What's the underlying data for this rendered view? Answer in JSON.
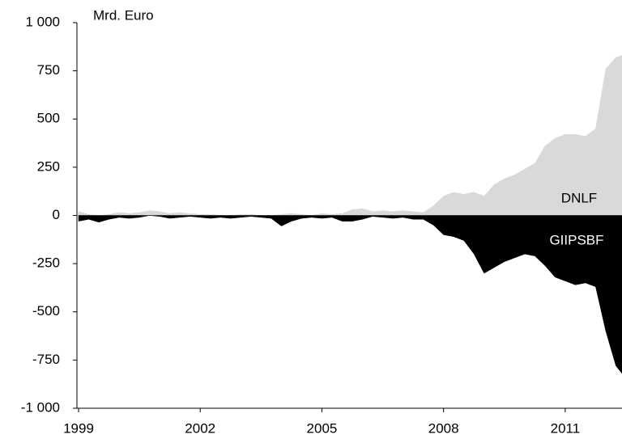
{
  "chart_data": {
    "type": "area",
    "annotation": "Mrd. Euro",
    "x": [
      1999,
      1999.25,
      1999.5,
      1999.75,
      2000,
      2000.25,
      2000.5,
      2000.75,
      2001,
      2001.25,
      2001.5,
      2001.75,
      2002,
      2002.25,
      2002.5,
      2002.75,
      2003,
      2003.25,
      2003.5,
      2003.75,
      2004,
      2004.25,
      2004.5,
      2004.75,
      2005,
      2005.25,
      2005.5,
      2005.75,
      2006,
      2006.25,
      2006.5,
      2006.75,
      2007,
      2007.25,
      2007.5,
      2007.75,
      2008,
      2008.25,
      2008.5,
      2008.75,
      2009,
      2009.25,
      2009.5,
      2009.75,
      2010,
      2010.25,
      2010.5,
      2010.75,
      2011,
      2011.25,
      2011.5,
      2011.75,
      2012,
      2012.25,
      2012.4
    ],
    "series": [
      {
        "name": "DNLF",
        "color": "#d9d9d9",
        "values": [
          20,
          5,
          0,
          5,
          15,
          10,
          15,
          25,
          20,
          10,
          15,
          10,
          5,
          5,
          0,
          0,
          5,
          5,
          0,
          0,
          5,
          10,
          5,
          0,
          10,
          5,
          10,
          30,
          35,
          20,
          25,
          20,
          25,
          20,
          15,
          50,
          100,
          120,
          110,
          120,
          100,
          160,
          190,
          210,
          240,
          270,
          360,
          400,
          420,
          420,
          410,
          450,
          760,
          820,
          830
        ]
      },
      {
        "name": "GIIPSBF",
        "color": "#000000",
        "values": [
          -30,
          -20,
          -35,
          -20,
          -10,
          -15,
          -10,
          0,
          -5,
          -15,
          -10,
          -5,
          -10,
          -15,
          -10,
          -15,
          -10,
          -5,
          -10,
          -15,
          -55,
          -30,
          -15,
          -10,
          -15,
          -10,
          -30,
          -30,
          -20,
          -5,
          -10,
          -15,
          -10,
          -20,
          -20,
          -50,
          -100,
          -110,
          -130,
          -200,
          -300,
          -270,
          -240,
          -220,
          -200,
          -210,
          -260,
          -320,
          -340,
          -360,
          -350,
          -370,
          -600,
          -780,
          -820
        ]
      }
    ],
    "xlim": [
      1999,
      2012.4
    ],
    "xticks": [
      1999,
      2002,
      2005,
      2008,
      2011
    ],
    "ylim": [
      -1000,
      1000
    ],
    "yticks": [
      {
        "value": -1000,
        "label": "-1 000"
      },
      -750,
      -500,
      -250,
      0,
      250,
      500,
      750,
      {
        "value": 1000,
        "label": "1 000"
      }
    ]
  }
}
